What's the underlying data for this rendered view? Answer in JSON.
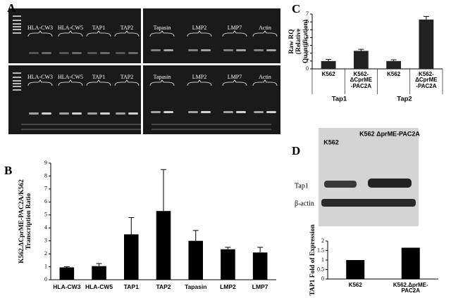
{
  "panel_labels": [
    "A",
    "B",
    "C",
    "D"
  ],
  "gel": {
    "top_left_labels": [
      "HLA-CW3",
      "HLA-CW5",
      "TAP1",
      "TAP2"
    ],
    "top_right_labels": [
      "Tapasin",
      "LMP2",
      "LMP7",
      "Actin"
    ],
    "bottom_left_labels": [
      "HLA-CW3",
      "HLA-CW5",
      "TAP1",
      "TAP2"
    ],
    "bottom_right_labels": [
      "Tapasin",
      "LMP2",
      "LMP7",
      "Actin"
    ]
  },
  "blot": {
    "column_labels": [
      "K562",
      "K562 ΔprME-PAC2A"
    ],
    "row_labels": [
      "Tap1",
      "β-actin"
    ]
  },
  "chart_data": [
    {
      "type": "bar",
      "y_label": [
        "K562.ΔCprME-PAC2A/K562",
        "Transcription Ratio"
      ],
      "categories": [
        "HLA-CW3",
        "HLA-CW5",
        "TAP1",
        "TAP2",
        "Tapasin",
        "LMP2",
        "LMP7"
      ],
      "values": [
        0.95,
        1.05,
        3.5,
        5.3,
        3.0,
        2.35,
        2.1
      ],
      "errors": [
        0.05,
        0.2,
        1.3,
        3.2,
        0.8,
        0.15,
        0.4
      ],
      "color": "#000000",
      "ylim": [
        0,
        9
      ],
      "yticks": [
        0,
        1,
        2,
        3,
        4,
        5,
        6,
        7,
        8,
        9
      ]
    },
    {
      "type": "bar",
      "y_label": [
        "Raw RQ",
        "(Relative",
        "Quantification)"
      ],
      "categories": [
        "K562",
        "K562-\nΔCprME\n-PAC2A",
        "K562",
        "K562-\nΔCprME\n-PAC2A"
      ],
      "groups": [
        "Tap1",
        "Tap2"
      ],
      "values": [
        1.0,
        2.3,
        1.0,
        6.3
      ],
      "errors": [
        0.2,
        0.2,
        0.15,
        0.4
      ],
      "color": "#222222",
      "ylim": [
        0,
        7
      ],
      "yticks": [
        0,
        1,
        2,
        3,
        4,
        5,
        6,
        7
      ]
    },
    {
      "type": "bar",
      "y_label": [
        "TAP1 Fold of Expression"
      ],
      "categories": [
        "K562",
        "K562.ΔprME-\nPAC2A"
      ],
      "values": [
        1.0,
        1.65
      ],
      "color": "#000000",
      "ylim": [
        0,
        2
      ],
      "yticks": [
        0,
        0.5,
        1,
        1.5,
        2
      ]
    }
  ]
}
